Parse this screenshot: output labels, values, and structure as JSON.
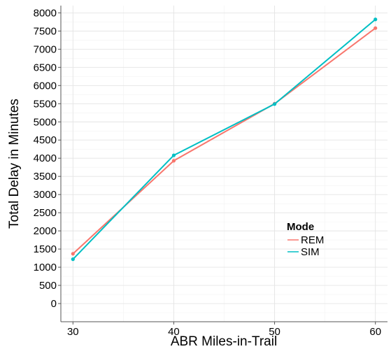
{
  "chart_data": {
    "type": "line",
    "xlabel": "ABR Miles-in-Trail",
    "ylabel": "Total Delay in Minutes",
    "x": [
      30,
      40,
      50,
      60
    ],
    "xticks": [
      "30",
      "40",
      "50",
      "60"
    ],
    "yticks": [
      "0",
      "500",
      "1000",
      "1500",
      "2000",
      "2500",
      "3000",
      "3500",
      "4000",
      "4500",
      "5000",
      "5500",
      "6000",
      "6500",
      "7000",
      "7500",
      "8000"
    ],
    "xlim": [
      28.8,
      61.2
    ],
    "ylim": [
      -500,
      8200
    ],
    "grid": true,
    "legend": {
      "title": "Mode",
      "placement": "bottom-right",
      "entries": [
        "REM",
        "SIM"
      ]
    },
    "series": [
      {
        "name": "REM",
        "color": "#f8766d",
        "values": [
          1370,
          3930,
          5500,
          7580
        ]
      },
      {
        "name": "SIM",
        "color": "#00bfc4",
        "values": [
          1220,
          4080,
          5490,
          7820
        ]
      }
    ]
  }
}
